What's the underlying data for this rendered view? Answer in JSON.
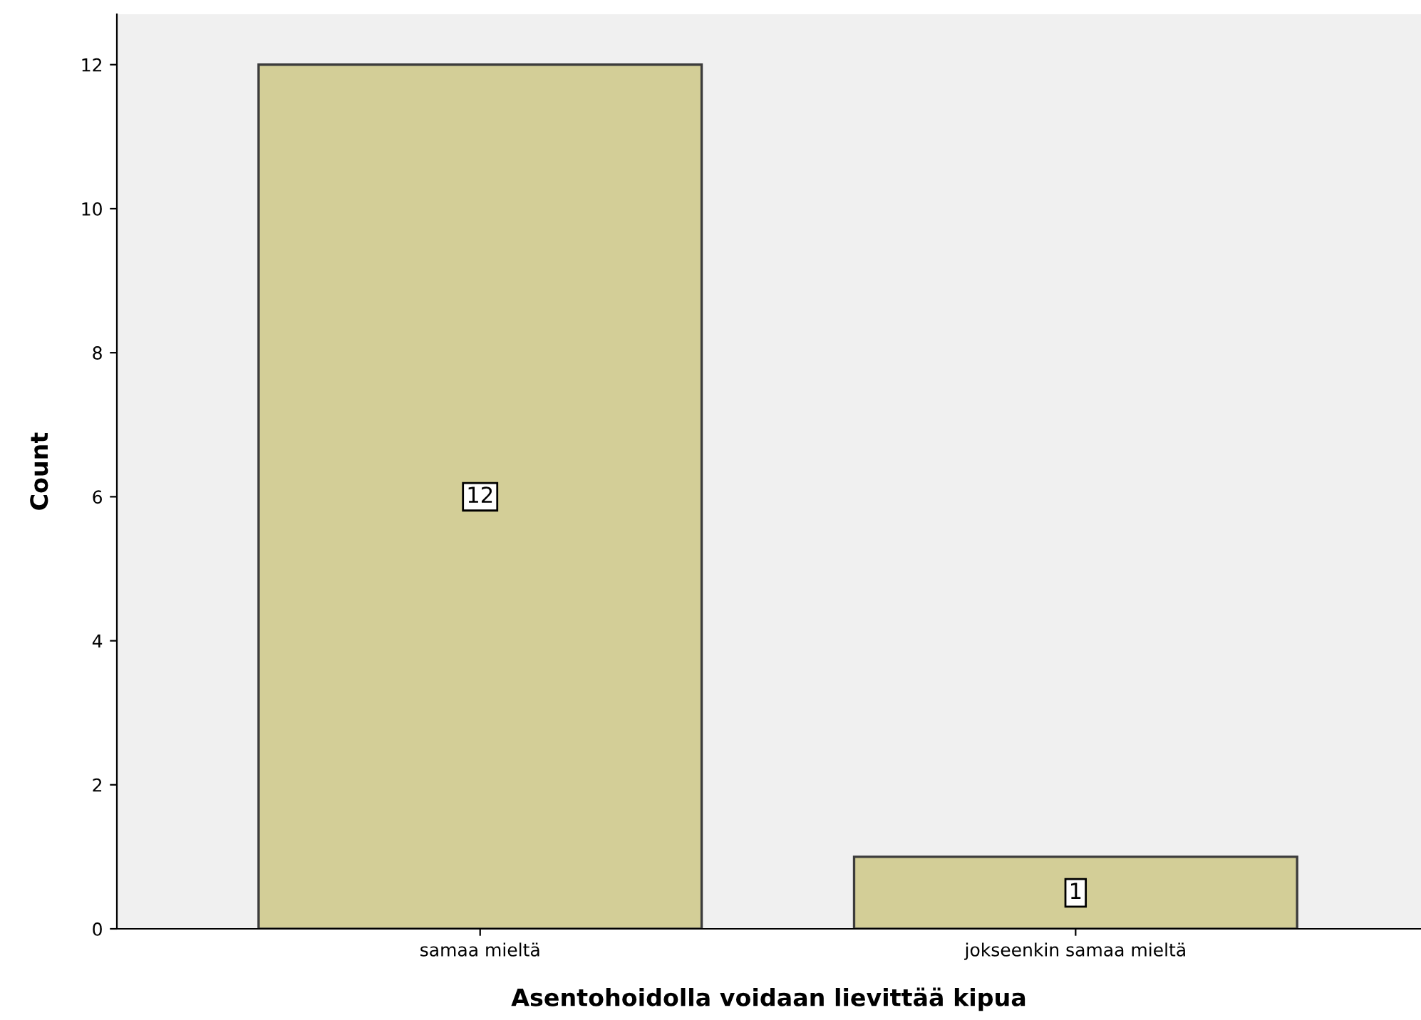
{
  "chart_data": {
    "type": "bar",
    "xlabel": "Asentohoidolla voidaan lievittää kipua",
    "ylabel": "Count",
    "categories": [
      "samaa mieltä",
      "jokseenkin samaa mieltä"
    ],
    "values": [
      12,
      1
    ],
    "color": "#d3ce97",
    "ylim": [
      0,
      12.7
    ],
    "yticks": [
      0,
      2,
      4,
      6,
      8,
      10,
      12
    ],
    "grid": false,
    "data_labels": true
  }
}
